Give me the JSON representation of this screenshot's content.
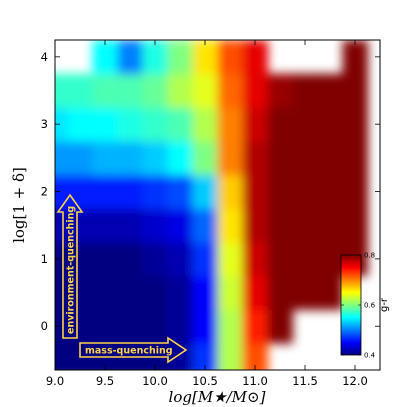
{
  "chart_data": {
    "type": "heatmap",
    "xlabel": "log[M★/M⊙]",
    "ylabel": "log[1 + δ]",
    "xlim": [
      9.0,
      12.25
    ],
    "ylim": [
      -0.65,
      4.25
    ],
    "x_ticks": [
      "9.0",
      "9.5",
      "10.0",
      "10.5",
      "11.0",
      "11.5",
      "12.0"
    ],
    "x_tick_values": [
      9.0,
      9.5,
      10.0,
      10.5,
      11.0,
      11.5,
      12.0
    ],
    "y_ticks": [
      "0",
      "1",
      "2",
      "3",
      "4"
    ],
    "y_tick_values": [
      0,
      1,
      2,
      3,
      4
    ],
    "colorbar": {
      "label": "g-r",
      "range": [
        0.4,
        0.8
      ],
      "ticks": [
        "0.4",
        "0.6",
        "0.8"
      ],
      "tick_values": [
        0.4,
        0.6,
        0.8
      ],
      "colormap": "jet"
    },
    "annotations": [
      {
        "text": "environment-quenching",
        "direction": "up",
        "color": "#ffd24a"
      },
      {
        "text": "mass-quenching",
        "direction": "right",
        "color": "#ffd24a"
      }
    ],
    "description_grid": {
      "x_centers": [
        9.0,
        9.25,
        9.5,
        9.75,
        10.0,
        10.25,
        10.5,
        10.75,
        11.0,
        11.25,
        11.5,
        11.75,
        12.0,
        12.25
      ],
      "y_centers": [
        -0.5,
        0.0,
        0.5,
        1.0,
        1.5,
        2.0,
        2.5,
        3.0,
        3.5,
        4.0
      ],
      "values": [
        [
          0.4,
          0.4,
          0.4,
          0.4,
          0.4,
          0.41,
          0.47,
          0.62,
          0.72,
          null,
          null,
          null,
          null,
          null
        ],
        [
          0.4,
          0.4,
          0.4,
          0.4,
          0.4,
          0.41,
          0.45,
          0.62,
          0.74,
          0.8,
          null,
          null,
          null,
          null
        ],
        [
          0.4,
          0.4,
          0.4,
          0.4,
          0.4,
          0.41,
          0.45,
          0.63,
          0.76,
          0.8,
          0.81,
          0.81,
          null,
          null
        ],
        [
          0.4,
          0.4,
          0.4,
          0.4,
          0.41,
          0.42,
          0.47,
          0.64,
          0.77,
          0.8,
          0.81,
          0.81,
          0.81,
          null
        ],
        [
          0.42,
          0.42,
          0.42,
          0.42,
          0.43,
          0.44,
          0.49,
          0.66,
          0.78,
          0.8,
          0.81,
          0.81,
          0.81,
          null
        ],
        [
          0.46,
          0.46,
          0.46,
          0.46,
          0.47,
          0.48,
          0.53,
          0.67,
          0.78,
          0.8,
          0.81,
          0.81,
          0.81,
          null
        ],
        [
          0.51,
          0.51,
          0.52,
          0.52,
          0.53,
          0.55,
          0.6,
          0.7,
          0.78,
          0.8,
          0.81,
          0.81,
          0.81,
          null
        ],
        [
          0.54,
          0.55,
          0.55,
          0.56,
          0.57,
          0.58,
          0.62,
          0.7,
          0.77,
          0.8,
          0.8,
          0.81,
          0.81,
          null
        ],
        [
          0.57,
          0.57,
          0.58,
          0.58,
          0.59,
          0.62,
          0.64,
          0.71,
          0.76,
          0.79,
          0.8,
          0.81,
          0.81,
          null
        ],
        [
          null,
          null,
          0.55,
          0.5,
          0.56,
          0.6,
          0.66,
          0.72,
          0.76,
          null,
          null,
          null,
          0.81,
          null
        ]
      ]
    }
  }
}
